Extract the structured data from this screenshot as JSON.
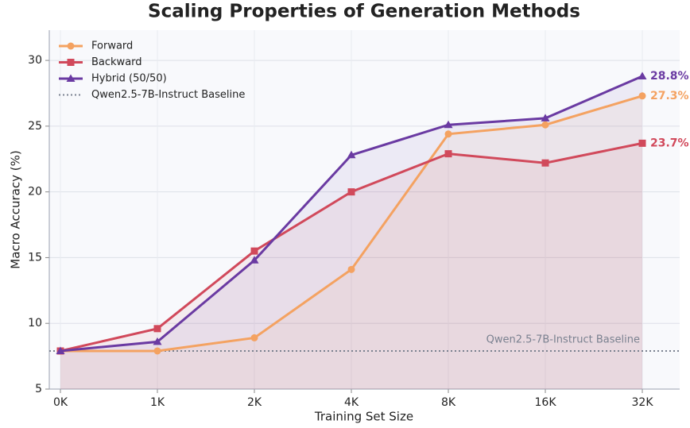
{
  "chart_data": {
    "type": "line",
    "title": "Scaling Properties of Generation Methods",
    "xlabel": "Training Set Size",
    "ylabel": "Macro Accuracy (%)",
    "categories": [
      "0K",
      "1K",
      "2K",
      "4K",
      "8K",
      "16K",
      "32K"
    ],
    "series": [
      {
        "name": "Forward",
        "color": "#f4a261",
        "marker": "circle",
        "values": [
          7.9,
          7.9,
          8.9,
          14.1,
          24.4,
          25.1,
          27.3
        ],
        "value_labels": [
          null,
          null,
          null,
          null,
          null,
          null,
          "27.3%"
        ]
      },
      {
        "name": "Backward",
        "color": "#d1495b",
        "marker": "square",
        "values": [
          7.9,
          9.6,
          15.5,
          20.0,
          22.9,
          22.2,
          23.7
        ],
        "value_labels": [
          null,
          null,
          null,
          null,
          null,
          null,
          "23.7%"
        ]
      },
      {
        "name": "Hybrid (50/50)",
        "color": "#6a3aa2",
        "marker": "triangle",
        "values": [
          7.9,
          8.6,
          14.8,
          22.8,
          25.1,
          25.6,
          28.8
        ],
        "value_labels": [
          null,
          null,
          null,
          null,
          null,
          null,
          "28.8%"
        ]
      }
    ],
    "baseline": {
      "name": "Qwen2.5-7B-Instruct Baseline",
      "value": 7.9,
      "color": "#7a8190",
      "annotation": "Qwen2.5-7B-Instruct Baseline"
    },
    "ylim": [
      5,
      32.3
    ],
    "yticks": [
      5,
      10,
      15,
      20,
      25,
      30
    ],
    "grid": true,
    "legend": "upper left"
  }
}
